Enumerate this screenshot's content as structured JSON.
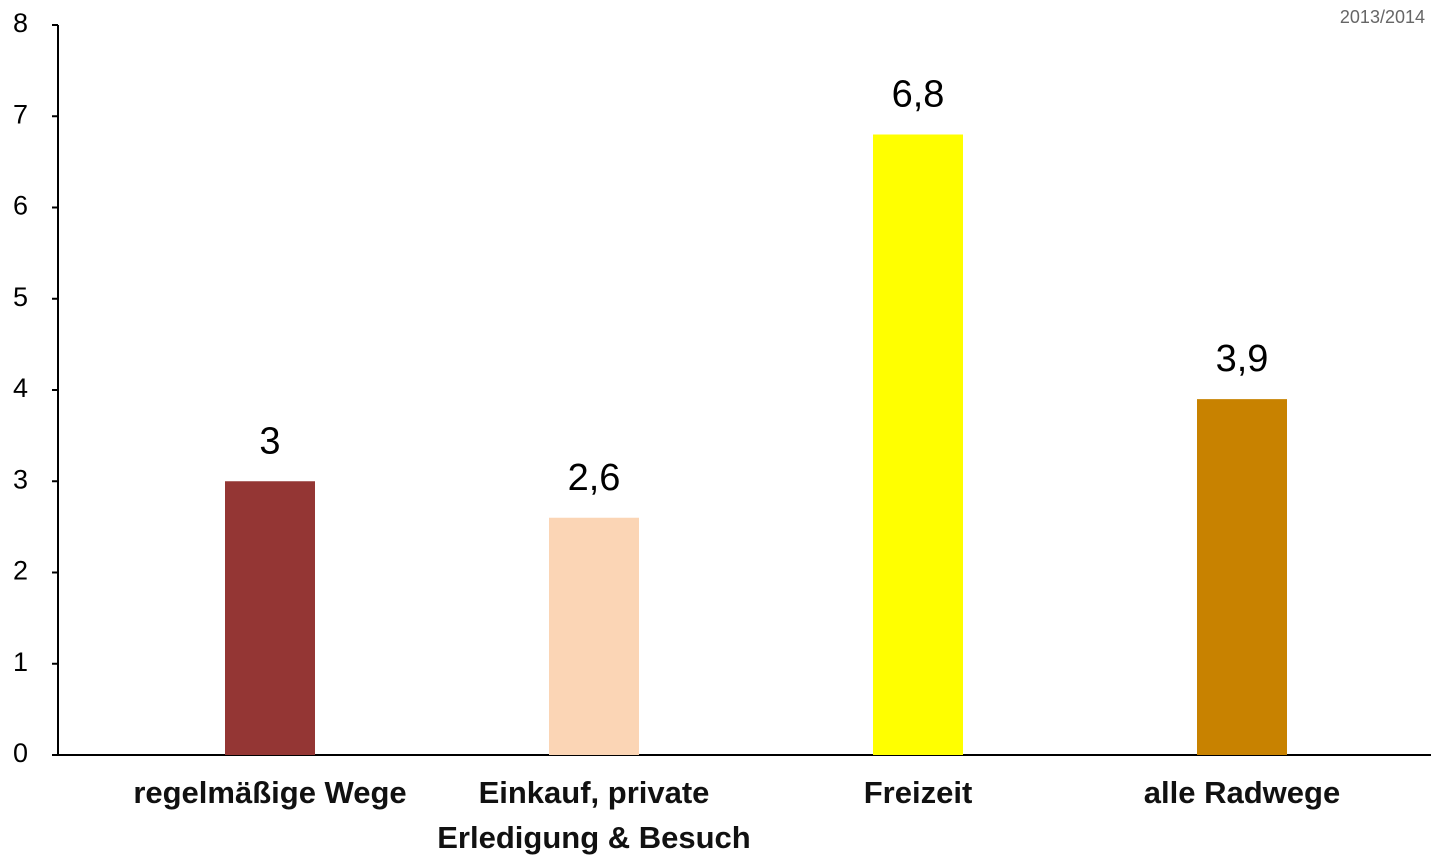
{
  "chart_data": {
    "type": "bar",
    "annotation": "2013/2014",
    "categories": [
      "regelmäßige Wege",
      "Einkauf, private Erledigung & Besuch",
      "Freizeit",
      "alle Radwege"
    ],
    "values": [
      3,
      2.6,
      6.8,
      3.9
    ],
    "value_labels": [
      "3",
      "2,6",
      "6,8",
      "3,9"
    ],
    "colors": [
      "#943634",
      "#fbd5b5",
      "#ffff00",
      "#c88200"
    ],
    "ylim": [
      0,
      8
    ],
    "yticks": [
      0,
      1,
      2,
      3,
      4,
      5,
      6,
      7,
      8
    ],
    "grid": false
  }
}
